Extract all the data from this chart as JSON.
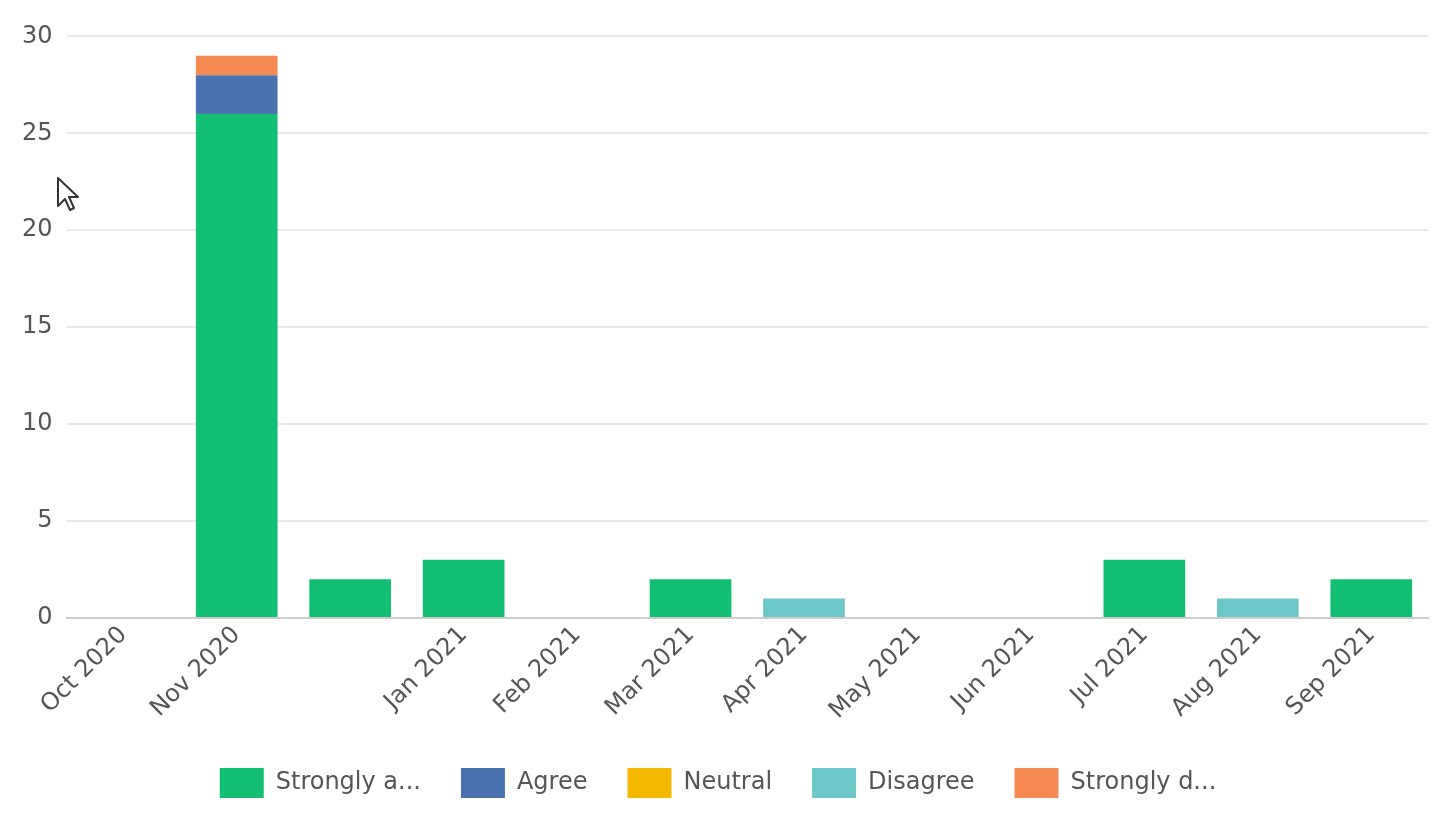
{
  "chart_data": {
    "type": "bar",
    "stacked": true,
    "categories": [
      "Oct 2020",
      "Nov 2020",
      null,
      "Jan 2021",
      "Feb 2021",
      "Mar 2021",
      "Apr 2021",
      "May 2021",
      "Jun 2021",
      "Jul 2021",
      "Aug 2021",
      "Sep 2021"
    ],
    "series": [
      {
        "name": "Strongly a...",
        "color": "#13bf73",
        "values": [
          0,
          26,
          2,
          3,
          0,
          2,
          0,
          0,
          0,
          3,
          0,
          2
        ]
      },
      {
        "name": "Agree",
        "color": "#4a72b0",
        "values": [
          0,
          2,
          0,
          0,
          0,
          0,
          0,
          0,
          0,
          0,
          0,
          0
        ]
      },
      {
        "name": "Neutral",
        "color": "#f5b800",
        "values": [
          0,
          0,
          0,
          0,
          0,
          0,
          0,
          0,
          0,
          0,
          0,
          0
        ]
      },
      {
        "name": "Disagree",
        "color": "#6cc8c8",
        "values": [
          0,
          0,
          0,
          0,
          0,
          0,
          1,
          0,
          0,
          0,
          1,
          0
        ]
      },
      {
        "name": "Strongly d...",
        "color": "#f58a53",
        "values": [
          0,
          1,
          0,
          0,
          0,
          0,
          0,
          0,
          0,
          0,
          0,
          0
        ]
      }
    ],
    "ylim": [
      0,
      30
    ],
    "yticks": [
      0,
      5,
      10,
      15,
      20,
      25,
      30
    ],
    "grid": "y",
    "legend": "bottom"
  }
}
